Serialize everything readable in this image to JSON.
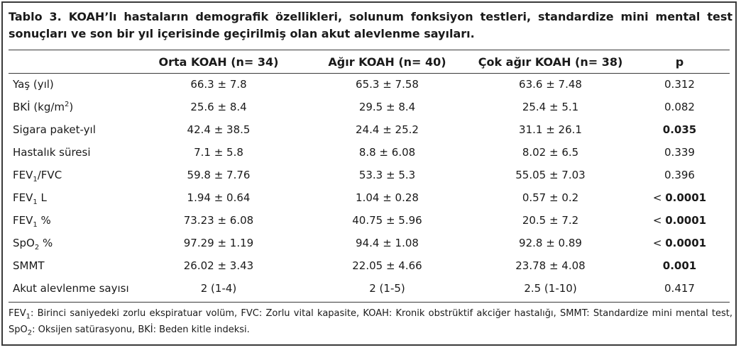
{
  "caption": "Tablo 3. KOAH’lı hastaların demografik özellikleri, solunum fonksiyon testleri, standardize mini mental test sonuçları ve son bir yıl içerisinde geçirilmiş olan akut alevlenme sayıları.",
  "headers": [
    "",
    "Orta KOAH (n= 34)",
    "Ağır KOAH (n= 40)",
    "Çok ağır KOAH (n= 38)",
    "p"
  ],
  "rows": [
    {
      "label": "Yaş (yıl)",
      "values": [
        "66.3 ± 7.8",
        "65.3 ± 7.58",
        "63.6 ± 7.48"
      ],
      "p_prefix": "",
      "p": "0.312",
      "p_bold": false
    },
    {
      "label": "BKİ (kg/m",
      "sup": "2",
      "suffix": ")",
      "values": [
        "25.6 ± 8.4",
        "29.5 ± 8.4",
        "25.4 ± 5.1"
      ],
      "p_prefix": "",
      "p": "0.082",
      "p_bold": false
    },
    {
      "label": "Sigara paket-yıl",
      "values": [
        "42.4 ± 38.5",
        "24.4 ± 25.2",
        "31.1 ± 26.1"
      ],
      "p_prefix": "",
      "p": "0.035",
      "p_bold": true
    },
    {
      "label": "Hastalık süresi",
      "values": [
        "7.1 ± 5.8",
        "8.8 ± 6.08",
        "8.02 ± 6.5"
      ],
      "p_prefix": "",
      "p": "0.339",
      "p_bold": false
    },
    {
      "label": "FEV",
      "sub": "1",
      "suffix": "/FVC",
      "values": [
        "59.8 ± 7.76",
        "53.3 ± 5.3",
        "55.05 ± 7.03"
      ],
      "p_prefix": "",
      "p": "0.396",
      "p_bold": false
    },
    {
      "label": "FEV",
      "sub": "1",
      "suffix": " L",
      "values": [
        "1.94 ± 0.64",
        "1.04 ± 0.28",
        "0.57 ± 0.2"
      ],
      "p_prefix": "< ",
      "p": "0.0001",
      "p_bold": true
    },
    {
      "label": "FEV",
      "sub": "1",
      "suffix": " %",
      "values": [
        "73.23 ± 6.08",
        "40.75 ± 5.96",
        "20.5 ± 7.2"
      ],
      "p_prefix": "< ",
      "p": "0.0001",
      "p_bold": true
    },
    {
      "label": "SpO",
      "sub": "2",
      "suffix": " %",
      "values": [
        "97.29 ± 1.19",
        "94.4 ± 1.08",
        "92.8 ± 0.89"
      ],
      "p_prefix": "< ",
      "p": "0.0001",
      "p_bold": true
    },
    {
      "label": "SMMT",
      "values": [
        "26.02 ± 3.43",
        "22.05 ± 4.66",
        "23.78 ± 4.08"
      ],
      "p_prefix": "",
      "p": "0.001",
      "p_bold": true
    },
    {
      "label": "Akut alevlenme sayısı",
      "values": [
        "2 (1-4)",
        "2 (1-5)",
        "2.5 (1-10)"
      ],
      "p_prefix": "",
      "p": "0.417",
      "p_bold": false
    }
  ],
  "footnote": {
    "part1": "FEV",
    "part1_sub": "1",
    "part2": ": Birinci saniyedeki zorlu ekspiratuar volüm, FVC: Zorlu vital kapasite, KOAH: Kronik obstrüktif akciğer hastalığı, SMMT: Standardize mini mental test, SpO",
    "part2_sub": "2",
    "part3": ": Oksijen satürasyonu, BKİ: Beden kitle indeksi."
  }
}
